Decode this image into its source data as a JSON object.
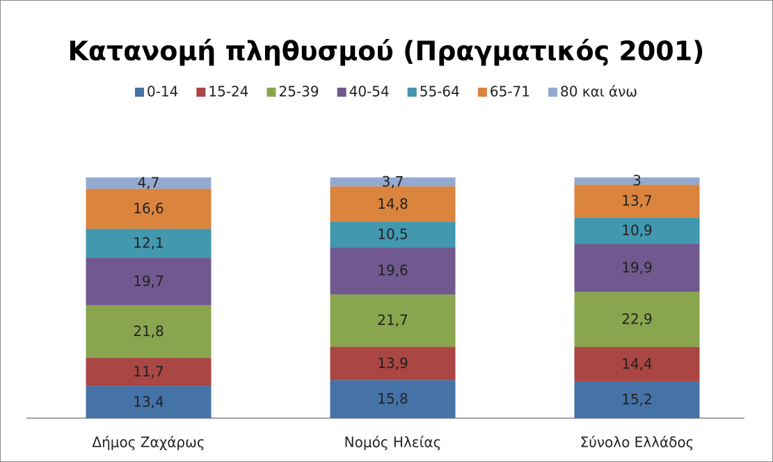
{
  "chart_data": {
    "type": "stacked_bar",
    "title": "Κατανομή πληθυσμού (Πραγματικός 2001)",
    "categories": [
      "Δήμος Ζαχάρως",
      "Νομός Ηλείας",
      "Σύνολο Ελλάδος"
    ],
    "ylim": [
      0,
      100
    ],
    "legend": "top",
    "series": [
      {
        "name": "0-14",
        "color": "#4572a7",
        "values": [
          13.4,
          15.8,
          15.2
        ],
        "value_labels": [
          "13,4",
          "15,8",
          "15,2"
        ]
      },
      {
        "name": "15-24",
        "color": "#aa4643",
        "values": [
          11.7,
          13.9,
          14.4
        ],
        "value_labels": [
          "11,7",
          "13,9",
          "14,4"
        ]
      },
      {
        "name": "25-39",
        "color": "#89a54e",
        "values": [
          21.8,
          21.7,
          22.9
        ],
        "value_labels": [
          "21,8",
          "21,7",
          "22,9"
        ]
      },
      {
        "name": "40-54",
        "color": "#71588f",
        "values": [
          19.7,
          19.6,
          19.9
        ],
        "value_labels": [
          "19,7",
          "19,6",
          "19,9"
        ]
      },
      {
        "name": "55-64",
        "color": "#4198af",
        "values": [
          12.1,
          10.5,
          10.9
        ],
        "value_labels": [
          "12,1",
          "10,5",
          "10,9"
        ]
      },
      {
        "name": "65-71",
        "color": "#db843d",
        "values": [
          16.6,
          14.8,
          13.7
        ],
        "value_labels": [
          "16,6",
          "14,8",
          "13,7"
        ]
      },
      {
        "name": "80 και άνω",
        "color": "#93a9cf",
        "values": [
          4.7,
          3.7,
          3
        ],
        "value_labels": [
          "4,7",
          "3,7",
          "3"
        ]
      }
    ]
  }
}
